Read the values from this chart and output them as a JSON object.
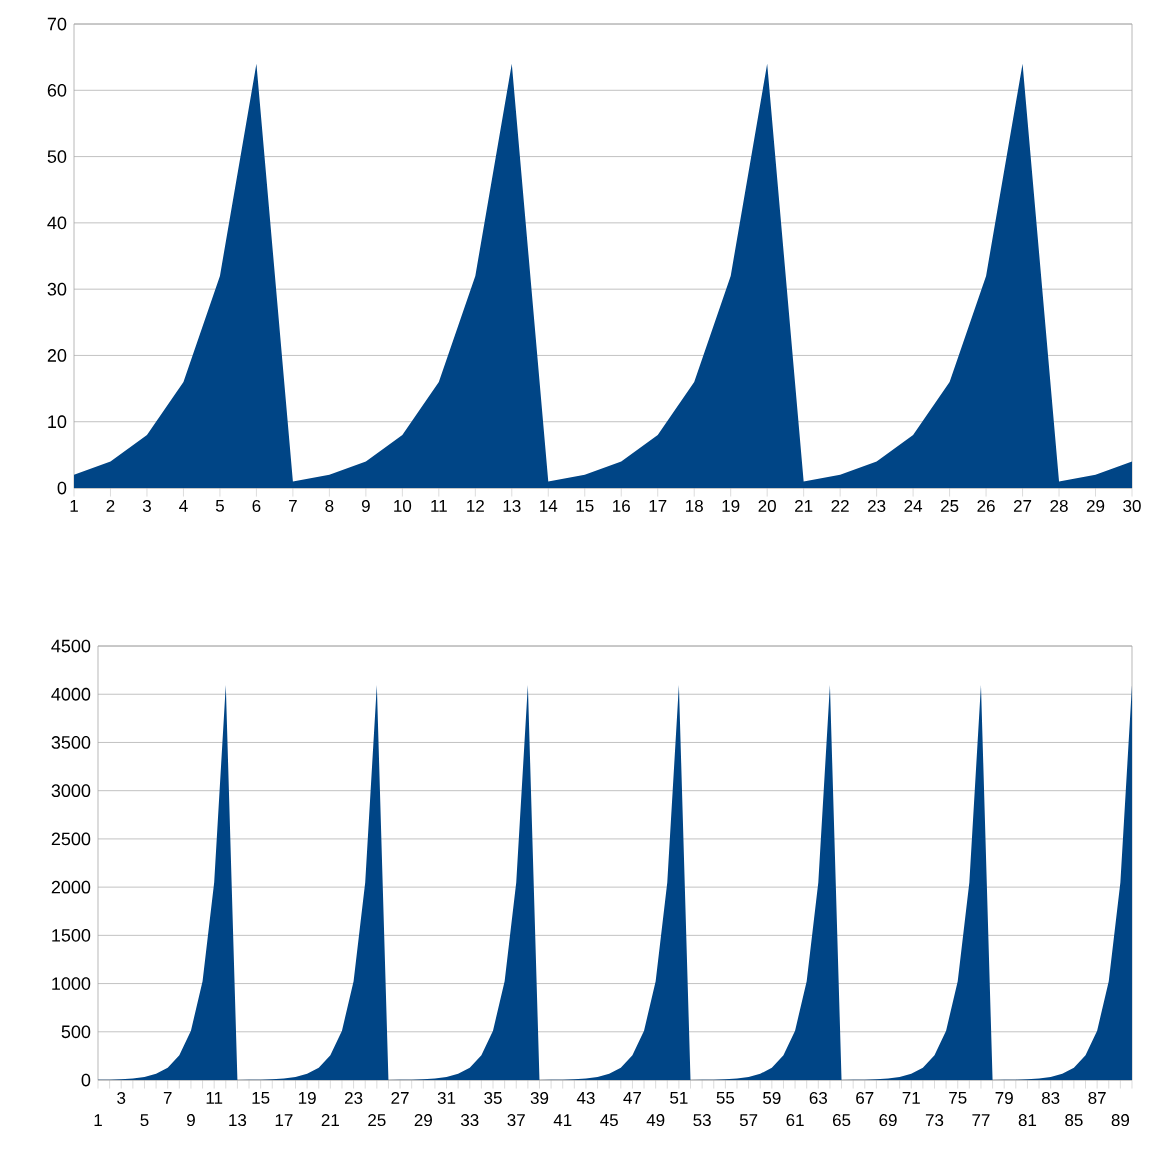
{
  "chart_data": [
    {
      "type": "area",
      "color": "#004586",
      "grid": "y",
      "ylim": [
        0,
        70
      ],
      "yticks": [
        0,
        10,
        20,
        30,
        40,
        50,
        60,
        70
      ],
      "categories": [
        "1",
        "2",
        "3",
        "4",
        "5",
        "6",
        "7",
        "8",
        "9",
        "10",
        "11",
        "12",
        "13",
        "14",
        "15",
        "16",
        "17",
        "18",
        "19",
        "20",
        "21",
        "22",
        "23",
        "24",
        "25",
        "26",
        "27",
        "28",
        "29",
        "30"
      ],
      "values": [
        2,
        4,
        8,
        16,
        32,
        64,
        1,
        2,
        4,
        8,
        16,
        32,
        64,
        1,
        2,
        4,
        8,
        16,
        32,
        64,
        1,
        2,
        4,
        8,
        16,
        32,
        64,
        1,
        2,
        4
      ]
    },
    {
      "type": "area",
      "color": "#004586",
      "grid": "y",
      "ylim": [
        0,
        4500
      ],
      "yticks": [
        0,
        500,
        1000,
        1500,
        2000,
        2500,
        3000,
        3500,
        4000,
        4500
      ],
      "categories": [
        "1",
        null,
        "3",
        null,
        "5",
        null,
        "7",
        null,
        "9",
        null,
        "11",
        null,
        "13",
        null,
        "15",
        null,
        "17",
        null,
        "19",
        null,
        "21",
        null,
        "23",
        null,
        "25",
        null,
        "27",
        null,
        "29",
        null,
        "31",
        null,
        "33",
        null,
        "35",
        null,
        "37",
        null,
        "39",
        null,
        "41",
        null,
        "43",
        null,
        "45",
        null,
        "47",
        null,
        "49",
        null,
        "51",
        null,
        "53",
        null,
        "55",
        null,
        "57",
        null,
        "59",
        null,
        "61",
        null,
        "63",
        null,
        "65",
        null,
        "67",
        null,
        "69",
        null,
        "71",
        null,
        "73",
        null,
        "75",
        null,
        "77",
        null,
        "79",
        null,
        "81",
        null,
        "83",
        null,
        "85",
        null,
        "87",
        null,
        "89",
        null
      ],
      "values": [
        2,
        4,
        8,
        16,
        32,
        64,
        128,
        256,
        512,
        1024,
        2048,
        4096,
        1,
        2,
        4,
        8,
        16,
        32,
        64,
        128,
        256,
        512,
        1024,
        2048,
        4096,
        1,
        2,
        4,
        8,
        16,
        32,
        64,
        128,
        256,
        512,
        1024,
        2048,
        4096,
        1,
        2,
        4,
        8,
        16,
        32,
        64,
        128,
        256,
        512,
        1024,
        2048,
        4096,
        1,
        2,
        4,
        8,
        16,
        32,
        64,
        128,
        256,
        512,
        1024,
        2048,
        4096,
        1,
        2,
        4,
        8,
        16,
        32,
        64,
        128,
        256,
        512,
        1024,
        2048,
        4096,
        1,
        2,
        4,
        8,
        16,
        32,
        64,
        128,
        256,
        512,
        1024,
        2048,
        4096
      ]
    }
  ]
}
